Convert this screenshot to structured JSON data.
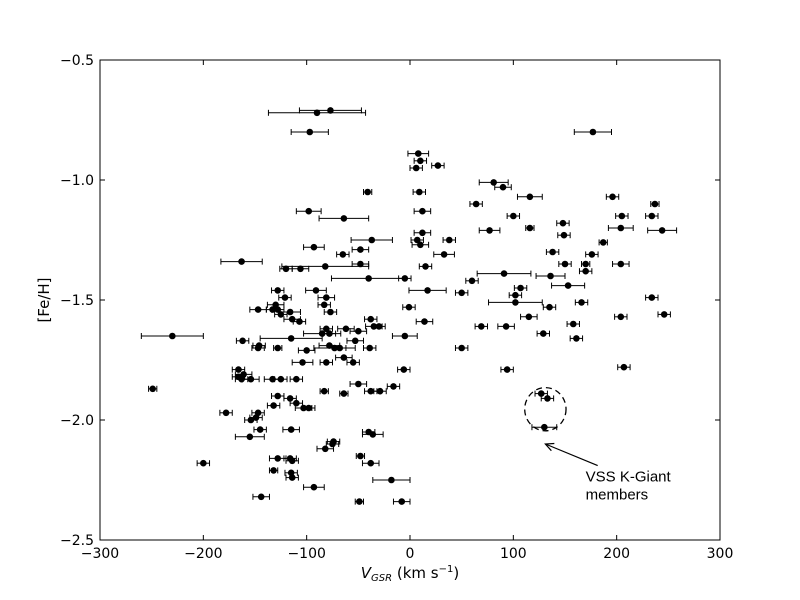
{
  "chart_data": {
    "type": "scatter",
    "title": "",
    "xlabel": "V_GSR (km s⁻¹)",
    "xlabel_parts": {
      "v": "V",
      "sub": "GSR",
      "unit": " (km s",
      "sup": "−1",
      "close": ")"
    },
    "ylabel": "[Fe/H]",
    "xlim": [
      -300,
      300
    ],
    "ylim": [
      -2.5,
      -0.5
    ],
    "xticks": [
      -300,
      -200,
      -100,
      0,
      100,
      200,
      300
    ],
    "xtick_labels": [
      "−300",
      "−200",
      "−100",
      "0",
      "100",
      "200",
      "300"
    ],
    "yticks": [
      -2.5,
      -2.0,
      -1.5,
      -1.0,
      -0.5
    ],
    "ytick_labels": [
      "−2.5",
      "−2.0",
      "−1.5",
      "−1.0",
      "−0.5"
    ],
    "grid": false,
    "marker_color": "#000000",
    "annotation": {
      "lines": [
        "VSS K-Giant",
        "members"
      ],
      "ellipse_center": [
        131,
        -1.955
      ],
      "ellipse_radii": [
        20,
        0.09
      ],
      "arrow_tip": [
        131,
        -2.1
      ],
      "text_anchor": [
        170,
        -2.24
      ]
    },
    "points": [
      {
        "x": -90,
        "y": -0.72,
        "xerr": 47
      },
      {
        "x": -77,
        "y": -0.71,
        "xerr": 30
      },
      {
        "x": -97,
        "y": -0.8,
        "xerr": 18
      },
      {
        "x": 177,
        "y": -0.8,
        "xerr": 18
      },
      {
        "x": 8,
        "y": -0.89,
        "xerr": 10
      },
      {
        "x": 10,
        "y": -0.92,
        "xerr": 6
      },
      {
        "x": 6,
        "y": -0.95,
        "xerr": 6
      },
      {
        "x": 27,
        "y": -0.94,
        "xerr": 6
      },
      {
        "x": 81,
        "y": -1.01,
        "xerr": 14
      },
      {
        "x": 90,
        "y": -1.03,
        "xerr": 8
      },
      {
        "x": 116,
        "y": -1.07,
        "xerr": 12
      },
      {
        "x": 196,
        "y": -1.07,
        "xerr": 6
      },
      {
        "x": 9,
        "y": -1.05,
        "xerr": 6
      },
      {
        "x": -41,
        "y": -1.05,
        "xerr": 4
      },
      {
        "x": 64,
        "y": -1.1,
        "xerr": 6
      },
      {
        "x": 237,
        "y": -1.1,
        "xerr": 4
      },
      {
        "x": -98,
        "y": -1.13,
        "xerr": 12
      },
      {
        "x": 12,
        "y": -1.13,
        "xerr": 8
      },
      {
        "x": 100,
        "y": -1.15,
        "xerr": 6
      },
      {
        "x": 205,
        "y": -1.15,
        "xerr": 6
      },
      {
        "x": 234,
        "y": -1.15,
        "xerr": 6
      },
      {
        "x": -64,
        "y": -1.16,
        "xerr": 24
      },
      {
        "x": 148,
        "y": -1.18,
        "xerr": 6
      },
      {
        "x": 116,
        "y": -1.2,
        "xerr": 4
      },
      {
        "x": 204,
        "y": -1.2,
        "xerr": 12
      },
      {
        "x": 244,
        "y": -1.21,
        "xerr": 14
      },
      {
        "x": 77,
        "y": -1.21,
        "xerr": 10
      },
      {
        "x": 12,
        "y": -1.22,
        "xerr": 8
      },
      {
        "x": 7,
        "y": -1.25,
        "xerr": 6
      },
      {
        "x": 38,
        "y": -1.25,
        "xerr": 6
      },
      {
        "x": 149,
        "y": -1.23,
        "xerr": 6
      },
      {
        "x": -37,
        "y": -1.25,
        "xerr": 20
      },
      {
        "x": 10,
        "y": -1.27,
        "xerr": 8
      },
      {
        "x": -93,
        "y": -1.28,
        "xerr": 10
      },
      {
        "x": -48,
        "y": -1.29,
        "xerr": 8
      },
      {
        "x": 187,
        "y": -1.26,
        "xerr": 4
      },
      {
        "x": 138,
        "y": -1.3,
        "xerr": 6
      },
      {
        "x": 33,
        "y": -1.31,
        "xerr": 10
      },
      {
        "x": -65,
        "y": -1.31,
        "xerr": 6
      },
      {
        "x": 176,
        "y": -1.31,
        "xerr": 6
      },
      {
        "x": -163,
        "y": -1.34,
        "xerr": 20
      },
      {
        "x": -48,
        "y": -1.35,
        "xerr": 8
      },
      {
        "x": 150,
        "y": -1.35,
        "xerr": 6
      },
      {
        "x": 204,
        "y": -1.35,
        "xerr": 8
      },
      {
        "x": 170,
        "y": -1.35,
        "xerr": 4
      },
      {
        "x": -106,
        "y": -1.37,
        "xerr": 8
      },
      {
        "x": -120,
        "y": -1.37,
        "xerr": 6
      },
      {
        "x": -82,
        "y": -1.36,
        "xerr": 42
      },
      {
        "x": 15,
        "y": -1.36,
        "xerr": 6
      },
      {
        "x": 170,
        "y": -1.38,
        "xerr": 6
      },
      {
        "x": 91,
        "y": -1.39,
        "xerr": 26
      },
      {
        "x": 136,
        "y": -1.4,
        "xerr": 14
      },
      {
        "x": -40,
        "y": -1.41,
        "xerr": 36
      },
      {
        "x": -5,
        "y": -1.41,
        "xerr": 6
      },
      {
        "x": 60,
        "y": -1.42,
        "xerr": 6
      },
      {
        "x": 107,
        "y": -1.45,
        "xerr": 6
      },
      {
        "x": 153,
        "y": -1.44,
        "xerr": 16
      },
      {
        "x": -128,
        "y": -1.46,
        "xerr": 6
      },
      {
        "x": -91,
        "y": -1.46,
        "xerr": 10
      },
      {
        "x": 17,
        "y": -1.46,
        "xerr": 18
      },
      {
        "x": 50,
        "y": -1.47,
        "xerr": 6
      },
      {
        "x": 102,
        "y": -1.48,
        "xerr": 6
      },
      {
        "x": -121,
        "y": -1.49,
        "xerr": 6
      },
      {
        "x": -81,
        "y": -1.49,
        "xerr": 8
      },
      {
        "x": 234,
        "y": -1.49,
        "xerr": 6
      },
      {
        "x": 102,
        "y": -1.51,
        "xerr": 26
      },
      {
        "x": -130,
        "y": -1.52,
        "xerr": 8
      },
      {
        "x": -83,
        "y": -1.52,
        "xerr": 6
      },
      {
        "x": 166,
        "y": -1.51,
        "xerr": 6
      },
      {
        "x": -1,
        "y": -1.53,
        "xerr": 6
      },
      {
        "x": 135,
        "y": -1.53,
        "xerr": 6
      },
      {
        "x": -147,
        "y": -1.54,
        "xerr": 8
      },
      {
        "x": -128,
        "y": -1.54,
        "xerr": 6
      },
      {
        "x": -116,
        "y": -1.55,
        "xerr": 10
      },
      {
        "x": -133,
        "y": -1.54,
        "xerr": 6
      },
      {
        "x": -77,
        "y": -1.55,
        "xerr": 6
      },
      {
        "x": -125,
        "y": -1.56,
        "xerr": 6
      },
      {
        "x": 246,
        "y": -1.56,
        "xerr": 6
      },
      {
        "x": 115,
        "y": -1.57,
        "xerr": 8
      },
      {
        "x": 204,
        "y": -1.57,
        "xerr": 6
      },
      {
        "x": -114,
        "y": -1.58,
        "xerr": 8
      },
      {
        "x": -38,
        "y": -1.58,
        "xerr": 6
      },
      {
        "x": -107,
        "y": -1.59,
        "xerr": 6
      },
      {
        "x": 14,
        "y": -1.59,
        "xerr": 8
      },
      {
        "x": -35,
        "y": -1.61,
        "xerr": 8
      },
      {
        "x": -30,
        "y": -1.61,
        "xerr": 6
      },
      {
        "x": 69,
        "y": -1.61,
        "xerr": 6
      },
      {
        "x": 93,
        "y": -1.61,
        "xerr": 8
      },
      {
        "x": 158,
        "y": -1.6,
        "xerr": 6
      },
      {
        "x": -81,
        "y": -1.62,
        "xerr": 6
      },
      {
        "x": -62,
        "y": -1.62,
        "xerr": 8
      },
      {
        "x": -50,
        "y": -1.63,
        "xerr": 8
      },
      {
        "x": -85,
        "y": -1.64,
        "xerr": 18
      },
      {
        "x": -78,
        "y": -1.64,
        "xerr": 6
      },
      {
        "x": 129,
        "y": -1.64,
        "xerr": 6
      },
      {
        "x": -230,
        "y": -1.65,
        "xerr": 30
      },
      {
        "x": -5,
        "y": -1.65,
        "xerr": 12
      },
      {
        "x": -115,
        "y": -1.66,
        "xerr": 30
      },
      {
        "x": -53,
        "y": -1.67,
        "xerr": 8
      },
      {
        "x": 161,
        "y": -1.66,
        "xerr": 6
      },
      {
        "x": -162,
        "y": -1.67,
        "xerr": 6
      },
      {
        "x": -78,
        "y": -1.69,
        "xerr": 10
      },
      {
        "x": -73,
        "y": -1.7,
        "xerr": 20
      },
      {
        "x": -68,
        "y": -1.7,
        "xerr": 6
      },
      {
        "x": -146,
        "y": -1.69,
        "xerr": 6
      },
      {
        "x": -147,
        "y": -1.7,
        "xerr": 6
      },
      {
        "x": -128,
        "y": -1.7,
        "xerr": 4
      },
      {
        "x": -39,
        "y": -1.7,
        "xerr": 6
      },
      {
        "x": 50,
        "y": -1.7,
        "xerr": 6
      },
      {
        "x": -100,
        "y": -1.71,
        "xerr": 8
      },
      {
        "x": -64,
        "y": -1.74,
        "xerr": 8
      },
      {
        "x": -55,
        "y": -1.76,
        "xerr": 6
      },
      {
        "x": -104,
        "y": -1.76,
        "xerr": 10
      },
      {
        "x": -81,
        "y": -1.76,
        "xerr": 6
      },
      {
        "x": 207,
        "y": -1.78,
        "xerr": 6
      },
      {
        "x": -166,
        "y": -1.79,
        "xerr": 6
      },
      {
        "x": 94,
        "y": -1.79,
        "xerr": 6
      },
      {
        "x": -6,
        "y": -1.79,
        "xerr": 6
      },
      {
        "x": -161,
        "y": -1.81,
        "xerr": 8
      },
      {
        "x": -166,
        "y": -1.82,
        "xerr": 6
      },
      {
        "x": -163,
        "y": -1.83,
        "xerr": 6
      },
      {
        "x": -154,
        "y": -1.83,
        "xerr": 8
      },
      {
        "x": -125,
        "y": -1.83,
        "xerr": 6
      },
      {
        "x": -133,
        "y": -1.83,
        "xerr": 8
      },
      {
        "x": -110,
        "y": -1.83,
        "xerr": 6
      },
      {
        "x": -50,
        "y": -1.85,
        "xerr": 8
      },
      {
        "x": -249,
        "y": -1.87,
        "xerr": 4
      },
      {
        "x": -38,
        "y": -1.88,
        "xerr": 6
      },
      {
        "x": -29,
        "y": -1.88,
        "xerr": 6
      },
      {
        "x": -16,
        "y": -1.86,
        "xerr": 6
      },
      {
        "x": -83,
        "y": -1.88,
        "xerr": 4
      },
      {
        "x": -64,
        "y": -1.89,
        "xerr": 4
      },
      {
        "x": -128,
        "y": -1.9,
        "xerr": 6
      },
      {
        "x": -116,
        "y": -1.91,
        "xerr": 6
      },
      {
        "x": 127,
        "y": -1.89,
        "xerr": 6
      },
      {
        "x": 133,
        "y": -1.91,
        "xerr": 6
      },
      {
        "x": -132,
        "y": -1.94,
        "xerr": 6
      },
      {
        "x": -103,
        "y": -1.95,
        "xerr": 8
      },
      {
        "x": -98,
        "y": -1.95,
        "xerr": 6
      },
      {
        "x": -110,
        "y": -1.93,
        "xerr": 6
      },
      {
        "x": -147,
        "y": -1.97,
        "xerr": 6
      },
      {
        "x": -178,
        "y": -1.97,
        "xerr": 6
      },
      {
        "x": -149,
        "y": -1.99,
        "xerr": 6
      },
      {
        "x": -154,
        "y": -2.0,
        "xerr": 6
      },
      {
        "x": 130,
        "y": -2.03,
        "xerr": 12
      },
      {
        "x": -145,
        "y": -2.04,
        "xerr": 6
      },
      {
        "x": -115,
        "y": -2.04,
        "xerr": 8
      },
      {
        "x": -40,
        "y": -2.05,
        "xerr": 6
      },
      {
        "x": -36,
        "y": -2.06,
        "xerr": 10
      },
      {
        "x": -155,
        "y": -2.07,
        "xerr": 14
      },
      {
        "x": -74,
        "y": -2.09,
        "xerr": 6
      },
      {
        "x": -75,
        "y": -2.1,
        "xerr": 6
      },
      {
        "x": -82,
        "y": -2.12,
        "xerr": 8
      },
      {
        "x": -48,
        "y": -2.15,
        "xerr": 4
      },
      {
        "x": -128,
        "y": -2.16,
        "xerr": 8
      },
      {
        "x": -116,
        "y": -2.16,
        "xerr": 6
      },
      {
        "x": -114,
        "y": -2.17,
        "xerr": 6
      },
      {
        "x": -38,
        "y": -2.18,
        "xerr": 8
      },
      {
        "x": -200,
        "y": -2.18,
        "xerr": 6
      },
      {
        "x": -132,
        "y": -2.21,
        "xerr": 4
      },
      {
        "x": -115,
        "y": -2.22,
        "xerr": 6
      },
      {
        "x": -114,
        "y": -2.24,
        "xerr": 6
      },
      {
        "x": -18,
        "y": -2.25,
        "xerr": 18
      },
      {
        "x": -93,
        "y": -2.28,
        "xerr": 10
      },
      {
        "x": -144,
        "y": -2.32,
        "xerr": 8
      },
      {
        "x": -49,
        "y": -2.34,
        "xerr": 4
      },
      {
        "x": -8,
        "y": -2.34,
        "xerr": 8
      }
    ]
  }
}
